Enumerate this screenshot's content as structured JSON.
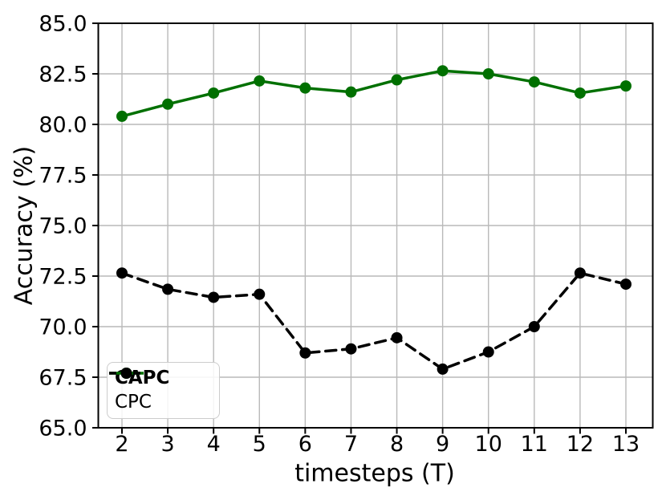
{
  "figure": {
    "background": "#ffffff"
  },
  "chart_data": {
    "type": "line",
    "x": [
      2,
      3,
      4,
      5,
      6,
      7,
      8,
      9,
      10,
      11,
      12,
      13
    ],
    "xlabel": "timesteps (T)",
    "ylabel": "Accuracy (%)",
    "ylim": [
      65.0,
      85.0
    ],
    "ytick_step": 2.5,
    "ytick_labels": [
      "65.0",
      "67.5",
      "70.0",
      "72.5",
      "75.0",
      "77.5",
      "80.0",
      "82.5",
      "85.0"
    ],
    "xtick_labels": [
      "2",
      "3",
      "4",
      "5",
      "6",
      "7",
      "8",
      "9",
      "10",
      "11",
      "12",
      "13"
    ],
    "grid": true,
    "legend_position": "lower-left",
    "series": [
      {
        "name": "CAPC",
        "color": "#007000",
        "style": "solid",
        "marker": "circle",
        "bold_label": true,
        "values": [
          80.4,
          81.0,
          81.55,
          82.15,
          81.8,
          81.6,
          82.2,
          82.65,
          82.5,
          82.1,
          81.55,
          81.9
        ]
      },
      {
        "name": "CPC",
        "color": "#000000",
        "style": "dashed",
        "marker": "circle",
        "bold_label": false,
        "values": [
          72.65,
          71.85,
          71.45,
          71.6,
          68.7,
          68.9,
          69.45,
          67.9,
          68.75,
          70.0,
          72.65,
          72.1
        ]
      }
    ],
    "colors": {
      "grid": "#b9b9b9",
      "axis": "#000000",
      "text": "#000000"
    }
  }
}
